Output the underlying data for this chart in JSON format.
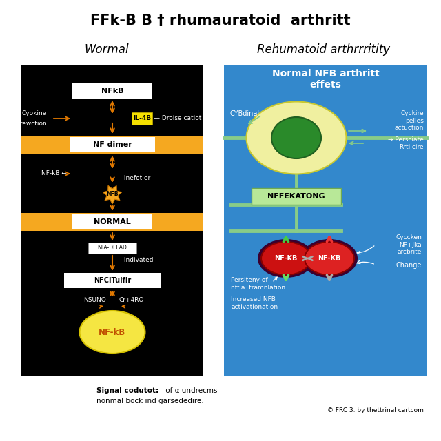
{
  "title": "FFk-B B † rhumauratoid  arthritt",
  "left_header": "Wormal",
  "right_header": "Rehumatoid arthrrritity",
  "left_bg": "#000000",
  "right_bg": "#3388cc",
  "orange_band": "#f5a820",
  "orange_arrow": "#e07800",
  "footer_text1": "Signal codutot:",
  "footer_text1b": " of α undrecms",
  "footer_text2": "nonmal bock ind garsededire.",
  "copyright": "© FRC 3: by thettrinal cartcom",
  "left_boxes": [
    "NFkB",
    "NF dimer",
    "NORMAL",
    "NFCITulfir"
  ],
  "left_starburst": "NFB",
  "right_title": "Normal NFB arthritt\neffets",
  "right_label_tl": "CYBdinal",
  "right_label_tr1": "Cyckire\npelles\nactuction",
  "right_label_tr2": "→ Persciate\nRrtiicire",
  "right_box_label": "NFFEKATONG",
  "right_label_br1": "Cyccken\nNF+Jka\narcbrite",
  "right_label_br2": "Change",
  "right_label_bl1": "Persiteny of\nnffla. tramnlation",
  "right_label_bl2": "Increased NFB\nactivationation",
  "nfkb_label": "NF-KB",
  "nfkb_label2": "NF-KB"
}
